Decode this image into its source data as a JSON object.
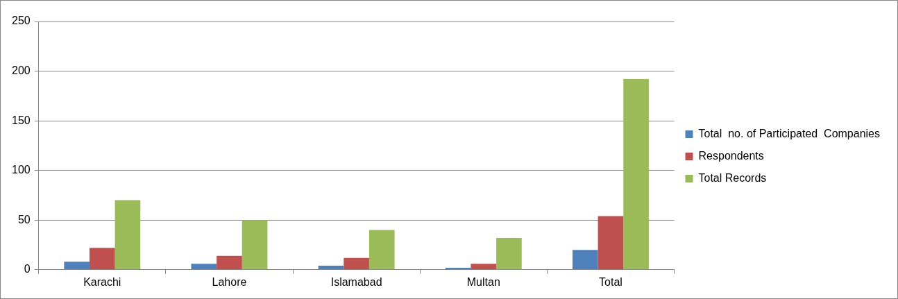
{
  "chart_data": {
    "type": "bar",
    "categories": [
      "Karachi",
      "Lahore",
      "Islamabad",
      "Multan",
      "Total"
    ],
    "series": [
      {
        "name": "Total  no. of Participated  Companies",
        "color": "#4f81bd",
        "values": [
          8,
          6,
          4,
          2,
          20
        ]
      },
      {
        "name": "Respondents",
        "color": "#c0504d",
        "values": [
          22,
          14,
          12,
          6,
          54
        ]
      },
      {
        "name": "Total Records",
        "color": "#9bbb59",
        "values": [
          70,
          50,
          40,
          32,
          192
        ]
      }
    ],
    "ylim": [
      0,
      250
    ],
    "yticks": [
      0,
      50,
      100,
      150,
      200,
      250
    ],
    "grid": "y",
    "legend": "right"
  }
}
